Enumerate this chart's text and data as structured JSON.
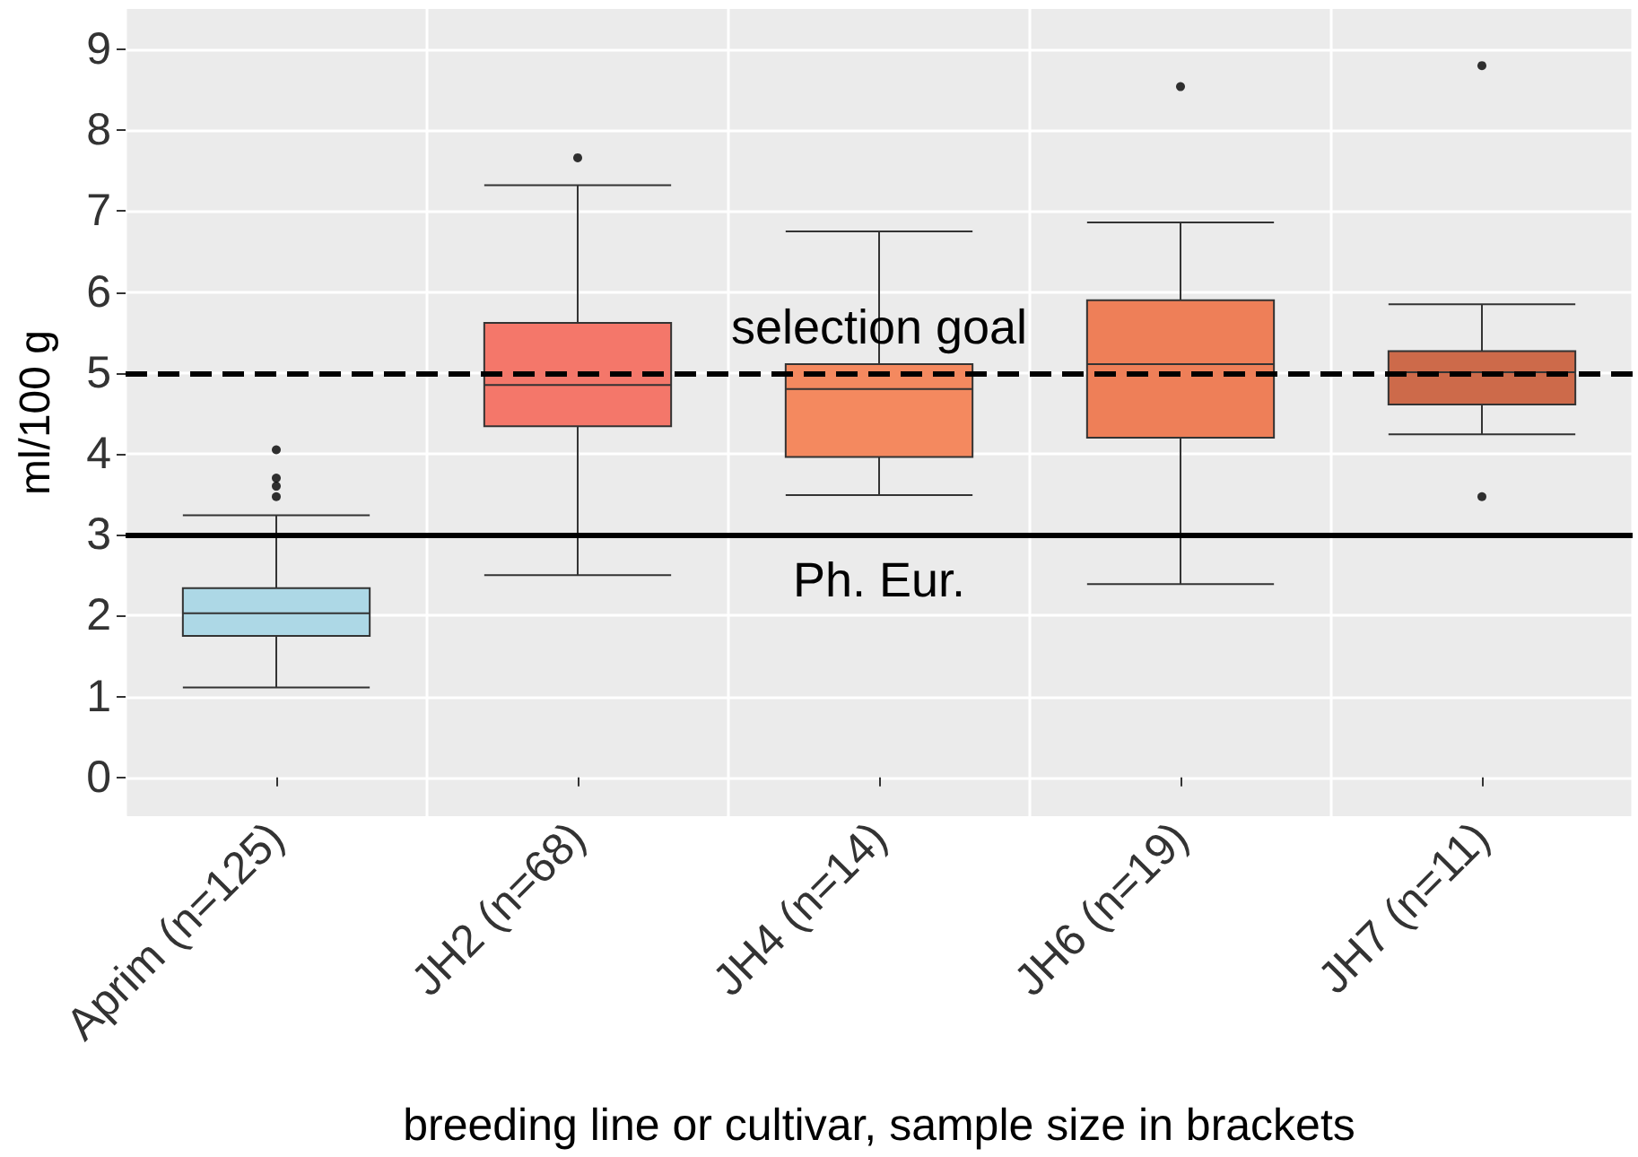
{
  "chart_data": {
    "type": "box",
    "xlabel": "breeding line or cultivar, sample size in brackets",
    "ylabel": "ml/100 g",
    "categories": [
      "Aprim (n=125)",
      "JH2 (n=68)",
      "JH4 (n=14)",
      "JH6 (n=19)",
      "JH7 (n=11)"
    ],
    "boxes": [
      {
        "low": 1.11,
        "q1": 1.75,
        "median": 2.03,
        "q3": 2.34,
        "high": 3.24,
        "outliers": [
          3.47,
          3.6,
          3.7,
          4.05
        ]
      },
      {
        "low": 2.5,
        "q1": 4.34,
        "median": 4.85,
        "q3": 5.62,
        "high": 7.32,
        "outliers": [
          7.66
        ]
      },
      {
        "low": 3.49,
        "q1": 3.96,
        "median": 4.8,
        "q3": 5.11,
        "high": 6.75
      },
      {
        "low": 2.39,
        "q1": 4.2,
        "median": 5.11,
        "q3": 5.9,
        "high": 6.86,
        "outliers": [
          8.54
        ]
      },
      {
        "low": 4.24,
        "q1": 4.61,
        "median": 5.01,
        "q3": 5.27,
        "high": 5.85,
        "outliers": [
          3.47,
          8.8
        ]
      }
    ],
    "colors": [
      "#add8e6",
      "#f4776a",
      "#f4895f",
      "#ee7f58",
      "#cd6a4a"
    ],
    "ylim": [
      -0.48,
      9.5
    ],
    "yticks": [
      0,
      1,
      2,
      3,
      4,
      5,
      6,
      7,
      8,
      9
    ],
    "grid": true,
    "ref_lines": [
      {
        "axis": "y",
        "value": 5,
        "label": "selection goal",
        "line_style": "dashed"
      },
      {
        "axis": "y",
        "value": 3,
        "label": "Ph. Eur.",
        "line_style": "solid"
      }
    ]
  }
}
